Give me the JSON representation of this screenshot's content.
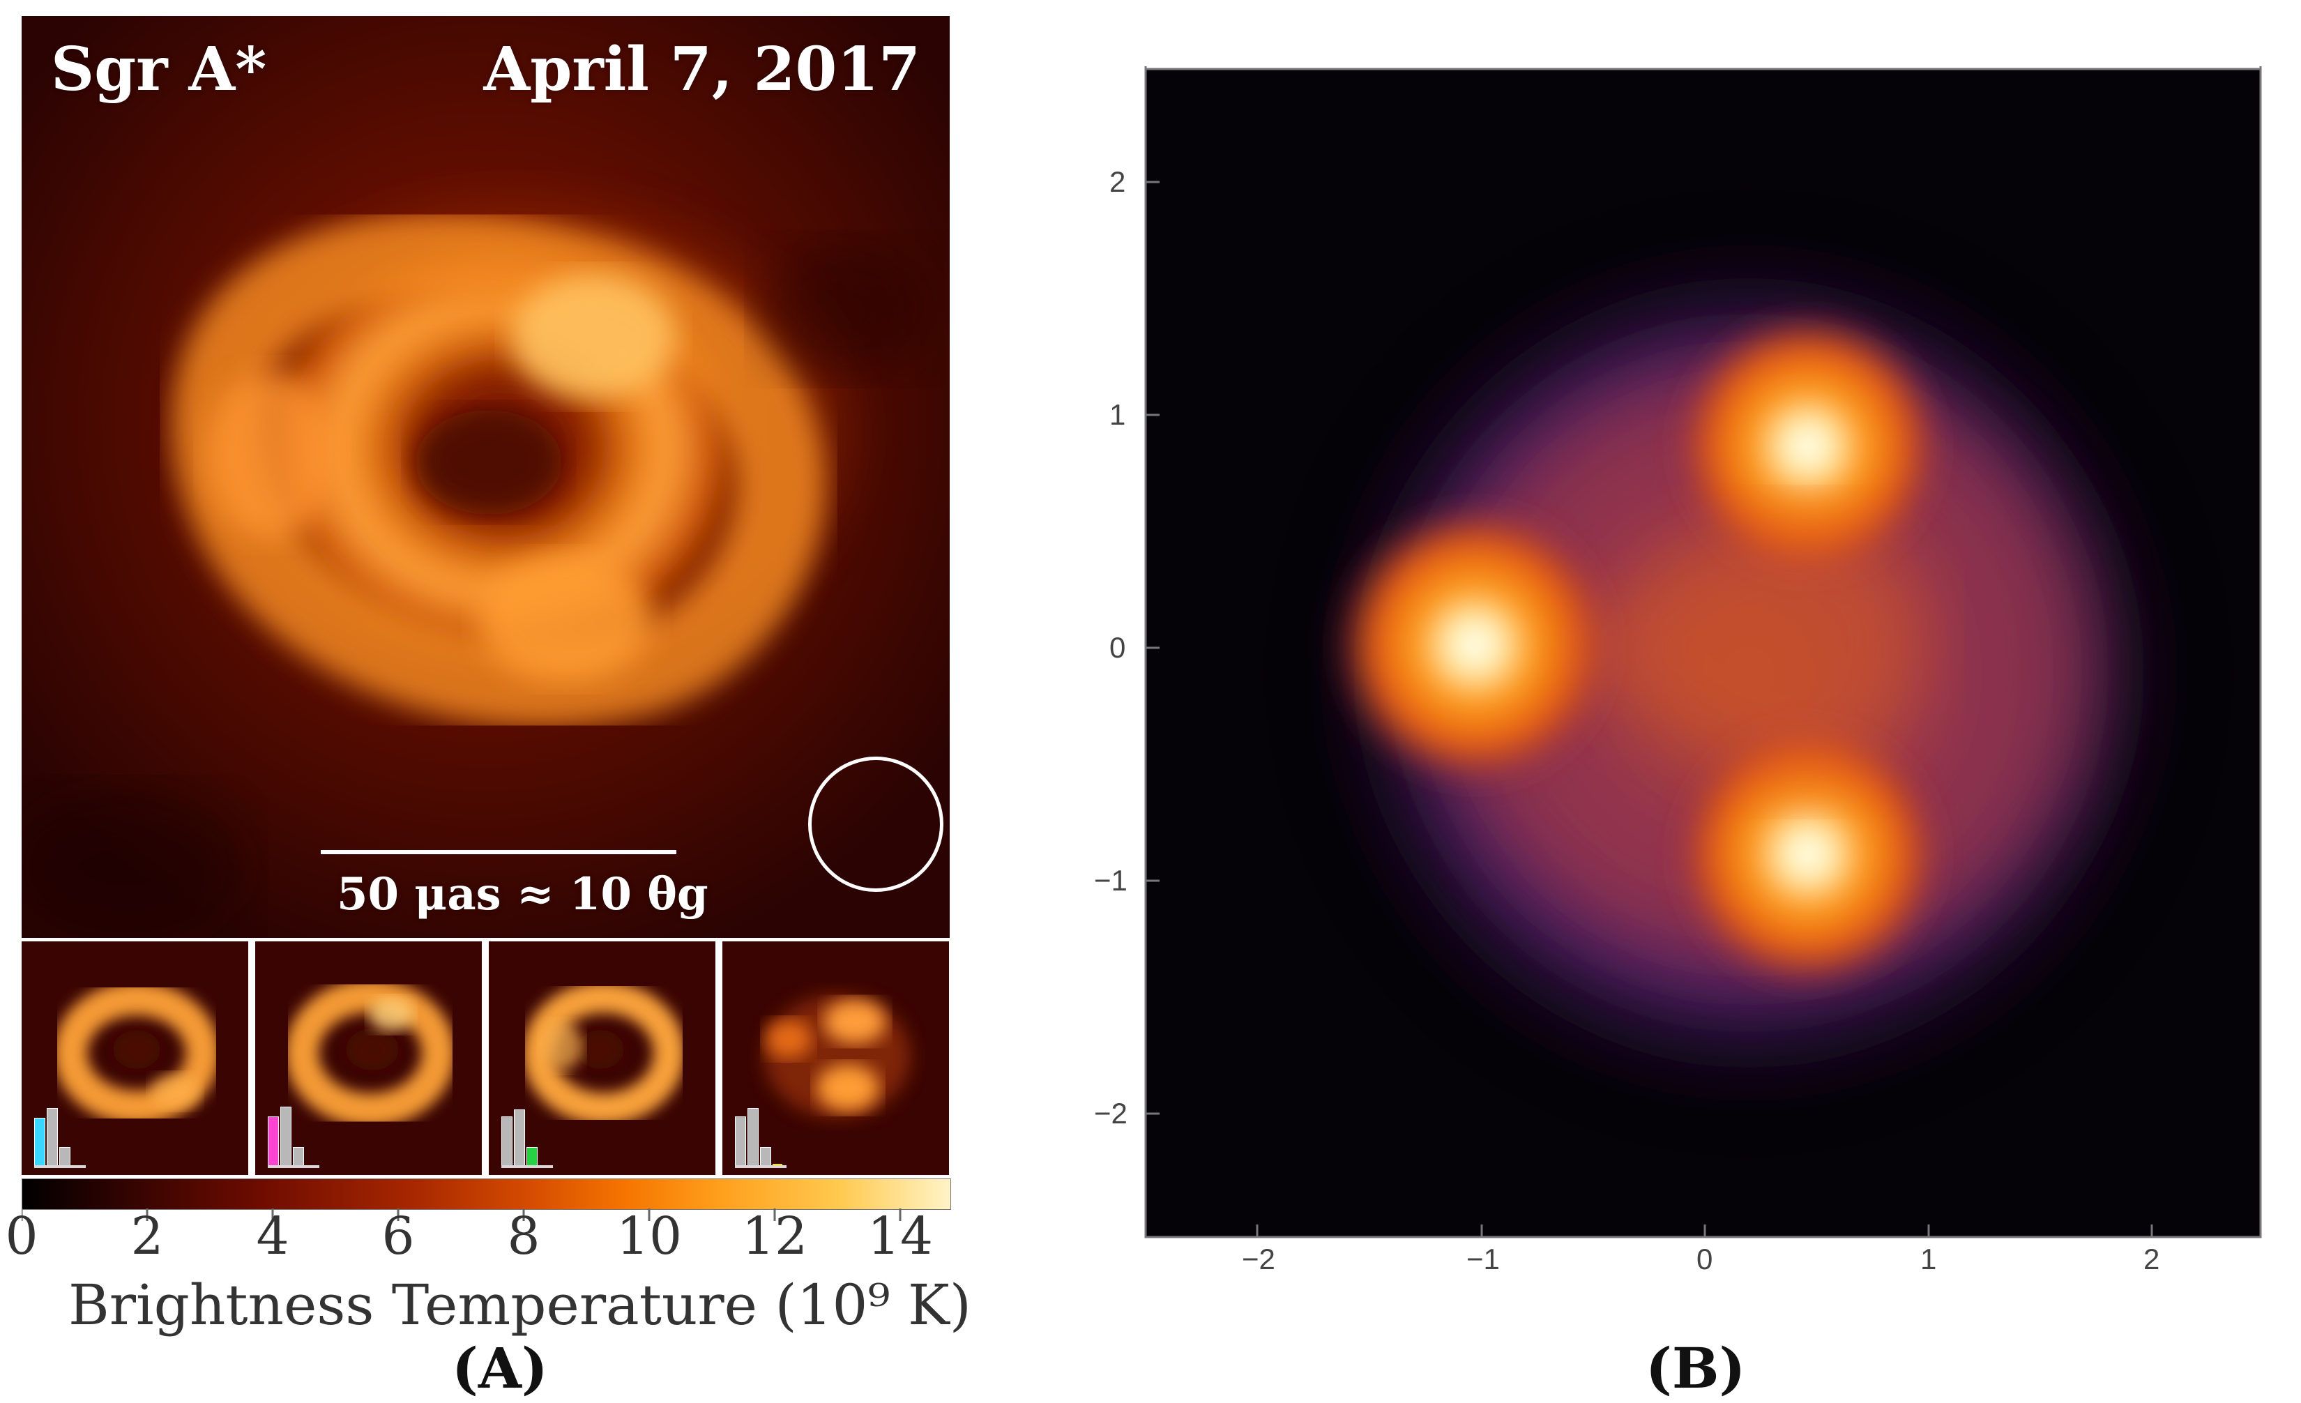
{
  "panel_a": {
    "source_label": "Sgr A*",
    "date_label": "April 7, 2017",
    "scale_bar_label": "50 μas ≈ 10 θg",
    "colorbar": {
      "tick_labels": [
        "0",
        "2",
        "4",
        "6",
        "8",
        "10",
        "12",
        "14"
      ],
      "title": "Brightness Temperature (10⁹ K)"
    },
    "caption": "(A)",
    "thumbnails": [
      {
        "highlight_color": "#39d7ff"
      },
      {
        "highlight_color": "#ff44d2"
      },
      {
        "highlight_color": "#26d146"
      },
      {
        "highlight_color": "#ffe600"
      }
    ]
  },
  "panel_b": {
    "caption": "(B)",
    "x_tick_labels": [
      "−2",
      "−1",
      "0",
      "1",
      "2"
    ],
    "y_tick_labels": [
      "2",
      "1",
      "0",
      "−1",
      "−2"
    ]
  },
  "colors": {
    "panel_a_background": "#3a0402",
    "panel_a_ring": "#f8a032",
    "panel_b_background": "#060308",
    "panel_b_glow": "#5a2b8c",
    "panel_b_hotspot": "#ffe38a"
  }
}
